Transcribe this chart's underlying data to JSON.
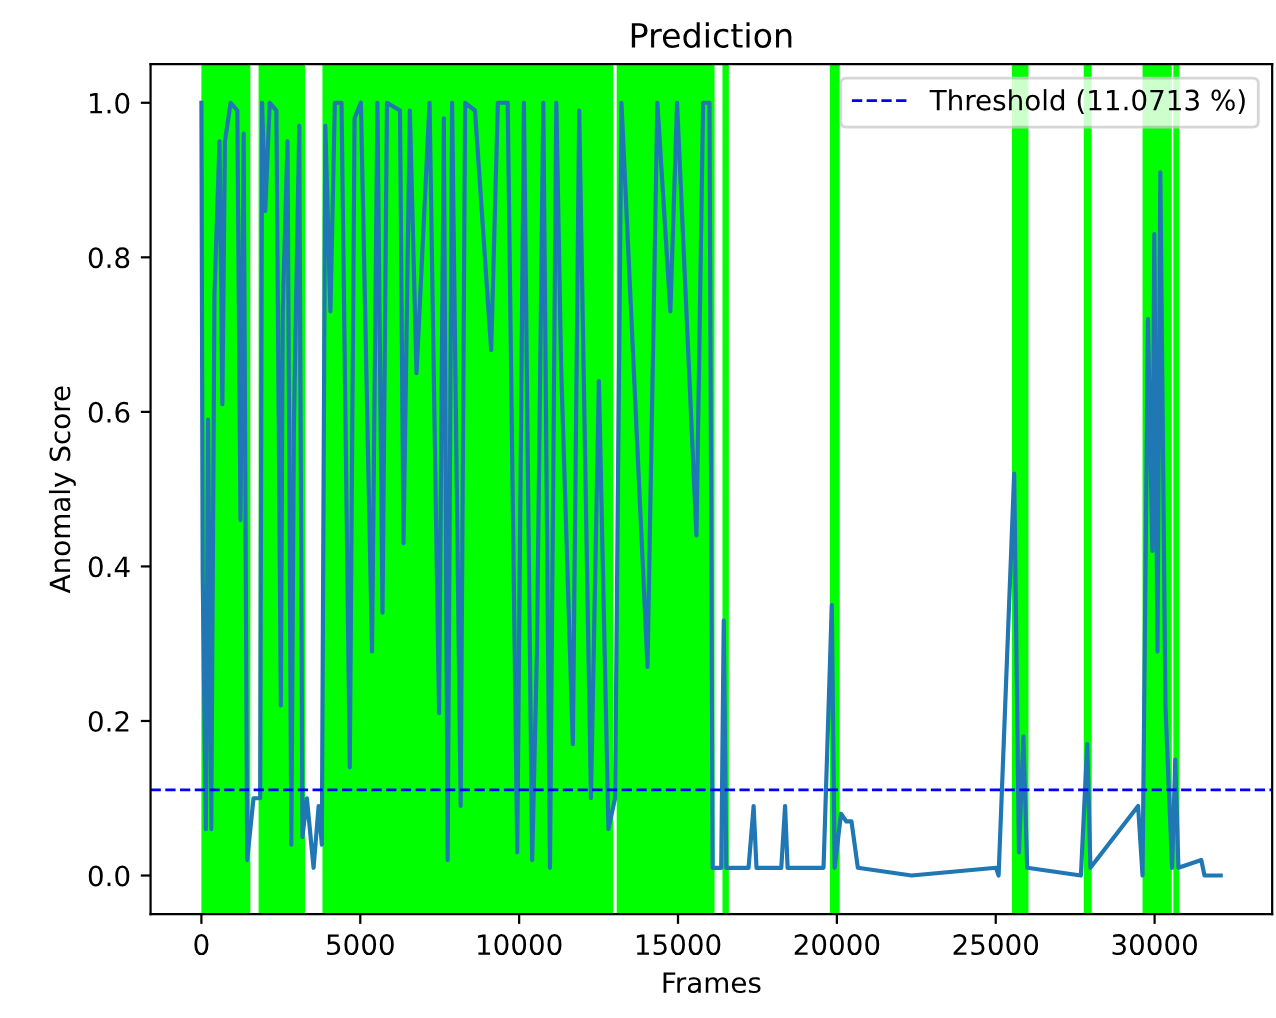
{
  "chart_data": {
    "type": "line",
    "title": "Prediction",
    "xlabel": "Frames",
    "ylabel": "Anomaly Score",
    "xlim": [
      -1600,
      33700
    ],
    "ylim": [
      -0.05,
      1.05
    ],
    "xticks": [
      0,
      5000,
      10000,
      15000,
      20000,
      25000,
      30000
    ],
    "yticks": [
      {
        "value": 0,
        "label": "0.0"
      },
      0.2,
      0.4,
      0.6,
      0.8,
      {
        "value": 1,
        "label": "1.0"
      }
    ],
    "series": [
      {
        "color": "#1f77b4",
        "x": [
          0,
          40,
          140,
          210,
          310,
          410,
          570,
          660,
          740,
          920,
          1130,
          1230,
          1330,
          1440,
          1640,
          1850,
          1910,
          2010,
          2150,
          2360,
          2500,
          2560,
          2710,
          2830,
          2910,
          3080,
          3180,
          3320,
          3530,
          3690,
          3790,
          3900,
          4060,
          4200,
          4410,
          4670,
          4820,
          5020,
          5370,
          5540,
          5700,
          5840,
          6250,
          6360,
          6560,
          6770,
          7180,
          7480,
          7630,
          7750,
          7890,
          8160,
          8300,
          8610,
          9120,
          9330,
          9640,
          9940,
          10150,
          10410,
          10560,
          10760,
          10970,
          11170,
          11320,
          11690,
          11890,
          12260,
          12510,
          12810,
          13020,
          13220,
          14040,
          14350,
          14760,
          14970,
          15580,
          15790,
          15990,
          16090,
          16360,
          16440,
          16520,
          17220,
          17380,
          17470,
          18250,
          18370,
          18450,
          19580,
          19840,
          19930,
          20130,
          20300,
          20460,
          20660,
          22350,
          25010,
          25090,
          25580,
          25730,
          25870,
          25990,
          27680,
          27880,
          27980,
          29480,
          29620,
          29790,
          29930,
          29990,
          30090,
          30180,
          30340,
          30550,
          30650,
          30750,
          31470,
          31570,
          32080
        ],
        "values": [
          1.0,
          0.39,
          0.06,
          0.59,
          0.06,
          0.75,
          0.95,
          0.61,
          0.95,
          1.0,
          0.99,
          0.46,
          0.96,
          0.02,
          0.1,
          0.1,
          1.0,
          0.86,
          1.0,
          0.99,
          0.22,
          0.73,
          0.95,
          0.04,
          0.58,
          0.97,
          0.05,
          0.1,
          0.01,
          0.09,
          0.04,
          0.97,
          0.73,
          1.0,
          1.0,
          0.14,
          0.98,
          1.0,
          0.29,
          1.0,
          0.34,
          1.0,
          0.99,
          0.43,
          0.99,
          0.65,
          1.0,
          0.21,
          0.98,
          0.02,
          1.0,
          0.09,
          1.0,
          0.99,
          0.68,
          1.0,
          1.0,
          0.03,
          1.0,
          0.02,
          0.29,
          1.0,
          0.01,
          1.0,
          0.66,
          0.17,
          0.99,
          0.1,
          0.64,
          0.06,
          0.1,
          1.0,
          0.27,
          1.0,
          0.73,
          1.0,
          0.44,
          1.0,
          1.0,
          0.01,
          0.01,
          0.33,
          0.01,
          0.01,
          0.09,
          0.01,
          0.01,
          0.09,
          0.01,
          0.01,
          0.35,
          0.01,
          0.08,
          0.07,
          0.07,
          0.01,
          0.0,
          0.01,
          0.0,
          0.52,
          0.03,
          0.18,
          0.01,
          0.0,
          0.17,
          0.01,
          0.09,
          0.0,
          0.72,
          0.42,
          0.83,
          0.29,
          0.91,
          0.22,
          0.01,
          0.15,
          0.01,
          0.02,
          0.0,
          0.0
        ]
      }
    ],
    "ref_lines": [
      {
        "axis": "y",
        "value": 0.110713,
        "label": "Threshold (11.0713 %)",
        "color": "#0000ff",
        "line_style": "dashed"
      }
    ],
    "bands": [
      {
        "axis": "x",
        "from": 0,
        "to": 1540,
        "color": "#00ff00"
      },
      {
        "axis": "x",
        "from": 1800,
        "to": 3260,
        "color": "#00ff00"
      },
      {
        "axis": "x",
        "from": 3810,
        "to": 12960,
        "color": "#00ff00"
      },
      {
        "axis": "x",
        "from": 13070,
        "to": 16150,
        "color": "#00ff00"
      },
      {
        "axis": "x",
        "from": 16400,
        "to": 16600,
        "color": "#00ff00"
      },
      {
        "axis": "x",
        "from": 19780,
        "to": 20090,
        "color": "#00ff00"
      },
      {
        "axis": "x",
        "from": 25510,
        "to": 26030,
        "color": "#00ff00"
      },
      {
        "axis": "x",
        "from": 27770,
        "to": 28020,
        "color": "#00ff00"
      },
      {
        "axis": "x",
        "from": 29620,
        "to": 30540,
        "color": "#00ff00"
      },
      {
        "axis": "x",
        "from": 30590,
        "to": 30780,
        "color": "#00ff00"
      }
    ],
    "grid": false,
    "legend": "top right"
  }
}
